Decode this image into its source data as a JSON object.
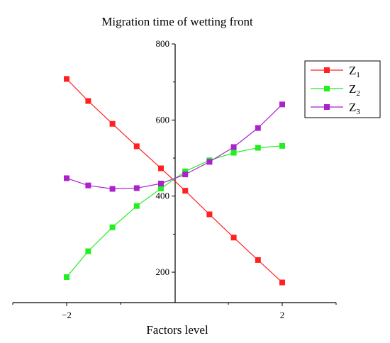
{
  "chart_data": {
    "type": "line",
    "title": "Migration time of wetting front",
    "xlabel": "Factors level",
    "ylabel": "",
    "xlim": [
      -3,
      3
    ],
    "ylim": [
      120,
      800
    ],
    "x_ticks": [
      -2,
      2
    ],
    "x_tick_labels": [
      "−2",
      "2"
    ],
    "y_ticks": [
      200,
      400,
      600,
      800
    ],
    "y_tick_labels": [
      "200",
      "400",
      "600",
      "800"
    ],
    "grid": false,
    "legend_position": "top-right",
    "x": [
      -2,
      -1.6,
      -1.15,
      -0.7,
      -0.25,
      0.2,
      0.65,
      1.1,
      1.55,
      2
    ],
    "series": [
      {
        "name": "Z1",
        "name_main": "Z",
        "name_sub": "1",
        "color": "#ff2020",
        "values": [
          708,
          650,
          590,
          531,
          473,
          414,
          352,
          291,
          232,
          173
        ]
      },
      {
        "name": "Z2",
        "name_main": "Z",
        "name_sub": "2",
        "color": "#22ee22",
        "values": [
          187,
          255,
          318,
          374,
          420,
          465,
          494,
          514,
          527,
          532
        ]
      },
      {
        "name": "Z3",
        "name_main": "Z",
        "name_sub": "3",
        "color": "#aa22cc",
        "values": [
          447,
          428,
          419,
          421,
          433,
          457,
          490,
          529,
          579,
          641
        ]
      }
    ]
  }
}
